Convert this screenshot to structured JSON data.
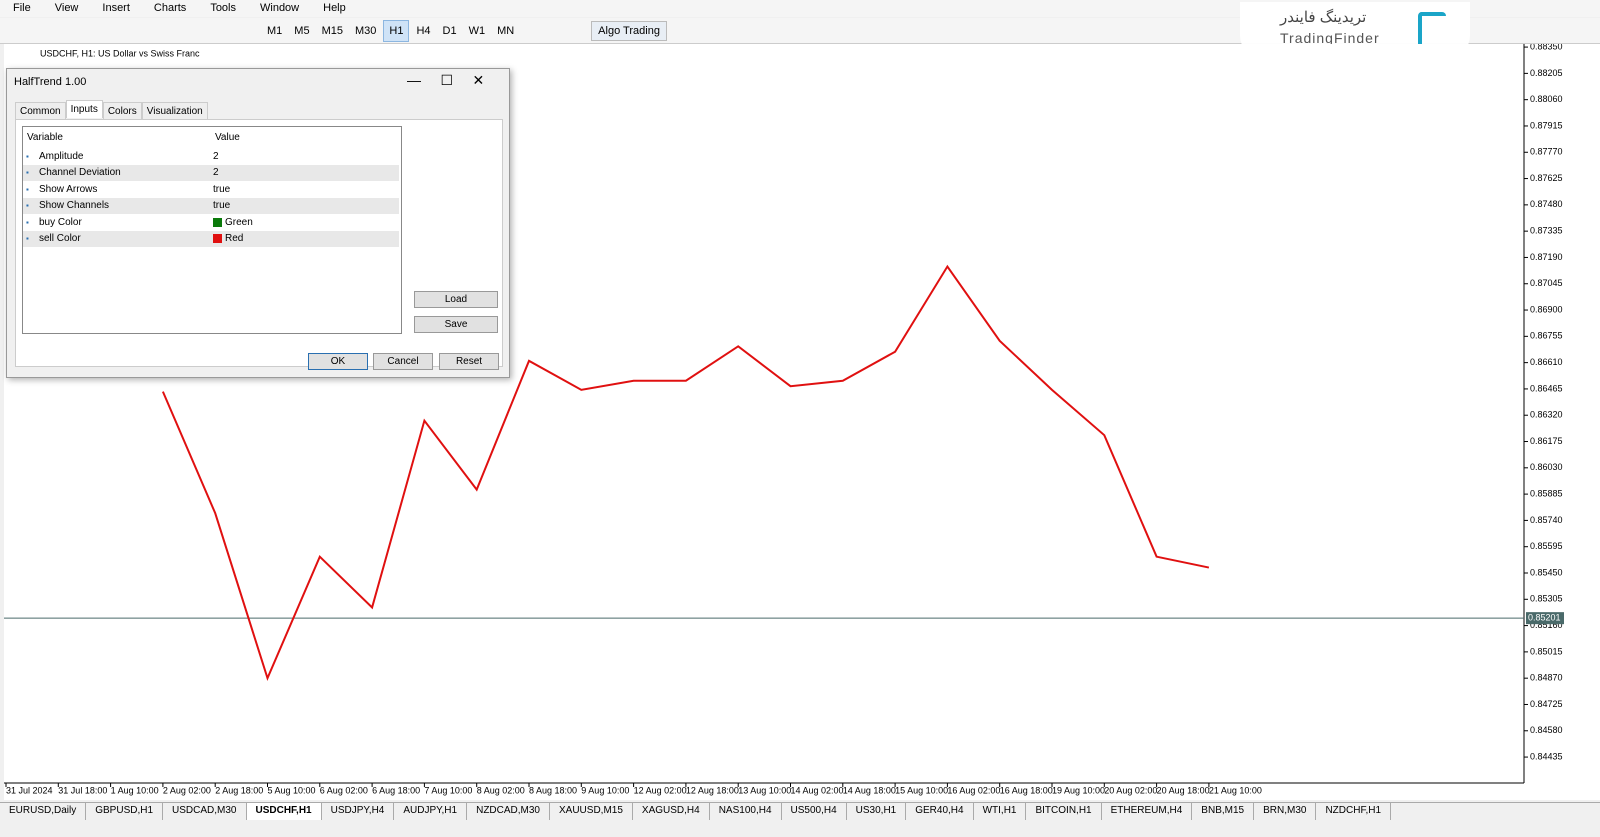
{
  "menu": [
    "File",
    "View",
    "Insert",
    "Charts",
    "Tools",
    "Window",
    "Help"
  ],
  "toolbar": {
    "timeframes": [
      "M1",
      "M5",
      "M15",
      "M30",
      "H1",
      "H4",
      "D1",
      "W1",
      "MN"
    ],
    "active_timeframe": "H1",
    "algo_trading": "Algo Trading"
  },
  "logo": {
    "fa": "تریدینگ فایندر",
    "en": "TradingFinder"
  },
  "chart_data": {
    "type": "line",
    "title": "USDCHF, H1:  US Dollar vs Swiss Franc",
    "categories": [
      "31 Jul 2024",
      "31 Jul 18:00",
      "1 Aug 10:00",
      "2 Aug 02:00",
      "2 Aug 18:00",
      "5 Aug 10:00",
      "6 Aug 02:00",
      "6 Aug 18:00",
      "7 Aug 10:00",
      "8 Aug 02:00",
      "8 Aug 18:00",
      "9 Aug 10:00",
      "12 Aug 02:00",
      "12 Aug 18:00",
      "13 Aug 10:00",
      "14 Aug 02:00",
      "14 Aug 18:00",
      "15 Aug 10:00",
      "16 Aug 02:00",
      "16 Aug 18:00",
      "19 Aug 10:00",
      "20 Aug 02:00",
      "20 Aug 18:00",
      "21 Aug 10:00"
    ],
    "values": [
      null,
      null,
      null,
      0.8645,
      0.8578,
      0.8487,
      0.8554,
      0.8526,
      0.8629,
      0.8591,
      0.8662,
      0.8646,
      0.8651,
      0.8651,
      0.867,
      0.8648,
      0.8651,
      0.8667,
      0.8714,
      0.8673,
      0.8646,
      0.8621,
      0.8554,
      0.8548
    ],
    "color": "#e01010",
    "ylim": [
      0.84292,
      0.88367
    ],
    "yticks": [
      {
        "value": 0.84435,
        "label": "0.84435"
      },
      {
        "value": 0.8458,
        "label": "0.84580"
      },
      {
        "value": 0.84725,
        "label": "0.84725"
      },
      {
        "value": 0.8487,
        "label": "0.84870"
      },
      {
        "value": 0.85015,
        "label": "0.85015"
      },
      {
        "value": 0.8516,
        "label": "0.85160"
      },
      {
        "value": 0.85305,
        "label": "0.85305"
      },
      {
        "value": 0.8545,
        "label": "0.85450"
      },
      {
        "value": 0.85595,
        "label": "0.85595"
      },
      {
        "value": 0.8574,
        "label": "0.85740"
      },
      {
        "value": 0.85885,
        "label": "0.85885"
      },
      {
        "value": 0.8603,
        "label": "0.86030"
      },
      {
        "value": 0.86175,
        "label": "0.86175"
      },
      {
        "value": 0.8632,
        "label": "0.86320"
      },
      {
        "value": 0.86465,
        "label": "0.86465"
      },
      {
        "value": 0.8661,
        "label": "0.86610"
      },
      {
        "value": 0.86755,
        "label": "0.86755"
      },
      {
        "value": 0.869,
        "label": "0.86900"
      },
      {
        "value": 0.87045,
        "label": "0.87045"
      },
      {
        "value": 0.8719,
        "label": "0.87190"
      },
      {
        "value": 0.87335,
        "label": "0.87335"
      },
      {
        "value": 0.8748,
        "label": "0.87480"
      },
      {
        "value": 0.87625,
        "label": "0.87625"
      },
      {
        "value": 0.8777,
        "label": "0.87770"
      },
      {
        "value": 0.87915,
        "label": "0.87915"
      },
      {
        "value": 0.8806,
        "label": "0.88060"
      },
      {
        "value": 0.88205,
        "label": "0.88205"
      },
      {
        "value": 0.8835,
        "label": "0.88350"
      }
    ],
    "current_price": {
      "value": 0.85201,
      "label": "0.85201"
    }
  },
  "dialog": {
    "title": "HalfTrend 1.00",
    "tabs": [
      "Common",
      "Inputs",
      "Colors",
      "Visualization"
    ],
    "active_tab": "Inputs",
    "columns": [
      "Variable",
      "Value"
    ],
    "rows": [
      [
        "Amplitude",
        "2"
      ],
      [
        "Channel Deviation",
        "2"
      ],
      [
        "Show Arrows",
        "true"
      ],
      [
        "Show Channels",
        "true"
      ],
      [
        "buy Color",
        "Green"
      ],
      [
        "sell Color",
        "Red"
      ]
    ],
    "buttons": [
      "Load",
      "Save",
      "OK",
      "Cancel",
      "Reset"
    ]
  },
  "tabs": [
    "EURUSD,Daily",
    "GBPUSD,H1",
    "USDCAD,M30",
    "USDCHF,H1",
    "USDJPY,H4",
    "AUDJPY,H1",
    "NZDCAD,M30",
    "XAUUSD,M15",
    "XAGUSD,H4",
    "NAS100,H4",
    "US500,H4",
    "US30,H1",
    "GER40,H4",
    "WTI,H1",
    "BITCOIN,H1",
    "ETHEREUM,H4",
    "BNB,M15",
    "BRN,M30",
    "NZDCHF,H1"
  ],
  "active_chart_tab": "USDCHF,H1"
}
